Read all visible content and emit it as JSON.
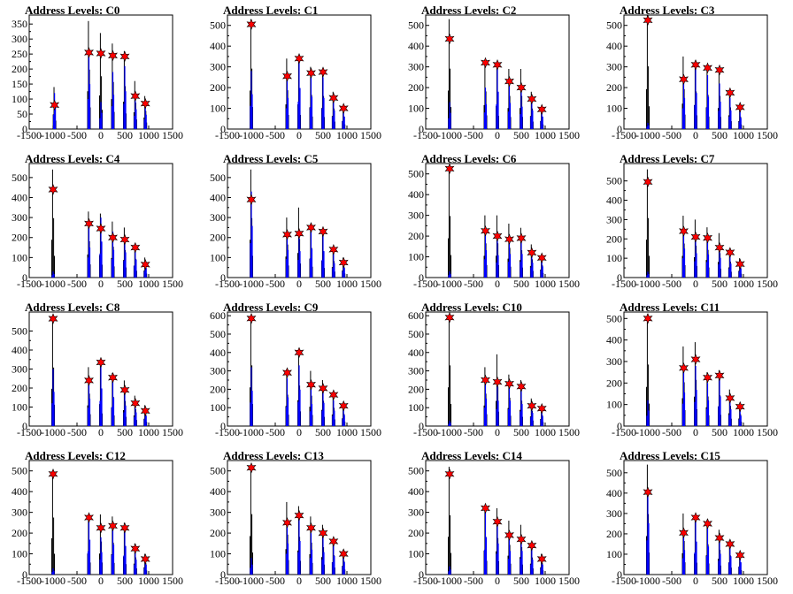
{
  "chart_data": [
    {
      "type": "histogram",
      "title": "Address Levels: C0",
      "xlim": [
        -1500,
        1500
      ],
      "ylim": [
        0,
        380
      ],
      "yticks": [
        0,
        50,
        100,
        150,
        200,
        250,
        300,
        350
      ],
      "xticks": [
        -1500,
        -1000,
        -500,
        0,
        500,
        1000,
        1500
      ],
      "peaks": [
        {
          "x": -970,
          "black": 140,
          "blue": 120,
          "star": 80
        },
        {
          "x": -250,
          "black": 360,
          "blue": 250,
          "star": 255
        },
        {
          "x": 0,
          "black": 320,
          "blue": 90,
          "star": 252
        },
        {
          "x": 250,
          "black": 285,
          "blue": 190,
          "star": 245
        },
        {
          "x": 500,
          "black": 260,
          "blue": 210,
          "star": 242
        },
        {
          "x": 720,
          "black": 160,
          "blue": 110,
          "star": 110
        },
        {
          "x": 930,
          "black": 110,
          "blue": 80,
          "star": 85
        }
      ]
    },
    {
      "type": "histogram",
      "title": "Address Levels: C1",
      "xlim": [
        -1500,
        1500
      ],
      "ylim": [
        0,
        550
      ],
      "yticks": [
        0,
        100,
        200,
        300,
        400,
        500
      ],
      "xticks": [
        -1500,
        -1000,
        -500,
        0,
        500,
        1000,
        1500
      ],
      "peaks": [
        {
          "x": -1000,
          "black": 530,
          "blue": 280,
          "star": 505
        },
        {
          "x": -250,
          "black": 340,
          "blue": 250,
          "star": 255
        },
        {
          "x": 0,
          "black": 340,
          "blue": 330,
          "star": 340
        },
        {
          "x": 250,
          "black": 300,
          "blue": 260,
          "star": 270
        },
        {
          "x": 500,
          "black": 290,
          "blue": 250,
          "star": 275
        },
        {
          "x": 720,
          "black": 180,
          "blue": 150,
          "star": 150
        },
        {
          "x": 930,
          "black": 110,
          "blue": 100,
          "star": 100
        }
      ]
    },
    {
      "type": "histogram",
      "title": "Address Levels: C2",
      "xlim": [
        -1500,
        1500
      ],
      "ylim": [
        0,
        550
      ],
      "yticks": [
        0,
        100,
        200,
        300,
        400,
        500
      ],
      "xticks": [
        -1500,
        -1000,
        -500,
        0,
        500,
        1000,
        1500
      ],
      "peaks": [
        {
          "x": -1000,
          "black": 530,
          "blue": 130,
          "star": 435
        },
        {
          "x": -250,
          "black": 330,
          "blue": 200,
          "star": 320
        },
        {
          "x": 0,
          "black": 320,
          "blue": 300,
          "star": 310
        },
        {
          "x": 250,
          "black": 290,
          "blue": 210,
          "star": 230
        },
        {
          "x": 500,
          "black": 290,
          "blue": 180,
          "star": 200
        },
        {
          "x": 720,
          "black": 180,
          "blue": 150,
          "star": 145
        },
        {
          "x": 930,
          "black": 110,
          "blue": 100,
          "star": 95
        }
      ]
    },
    {
      "type": "histogram",
      "title": "Address Levels: C3",
      "xlim": [
        -1500,
        1500
      ],
      "ylim": [
        0,
        550
      ],
      "yticks": [
        0,
        100,
        200,
        300,
        400,
        500
      ],
      "xticks": [
        -1500,
        -1000,
        -500,
        0,
        500,
        1000,
        1500
      ],
      "peaks": [
        {
          "x": -1000,
          "black": 550,
          "blue": 30,
          "star": 525
        },
        {
          "x": -250,
          "black": 350,
          "blue": 250,
          "star": 240
        },
        {
          "x": 0,
          "black": 330,
          "blue": 290,
          "star": 310
        },
        {
          "x": 250,
          "black": 300,
          "blue": 260,
          "star": 295
        },
        {
          "x": 500,
          "black": 290,
          "blue": 220,
          "star": 285
        },
        {
          "x": 720,
          "black": 190,
          "blue": 150,
          "star": 175
        },
        {
          "x": 930,
          "black": 110,
          "blue": 90,
          "star": 105
        }
      ]
    },
    {
      "type": "histogram",
      "title": "Address Levels: C4",
      "xlim": [
        -1500,
        1500
      ],
      "ylim": [
        0,
        570
      ],
      "yticks": [
        0,
        100,
        200,
        300,
        400,
        500
      ],
      "xticks": [
        -1500,
        -1000,
        -500,
        0,
        500,
        1000,
        1500
      ],
      "peaks": [
        {
          "x": -1000,
          "black": 540,
          "blue": 30,
          "star": 440
        },
        {
          "x": -250,
          "black": 330,
          "blue": 250,
          "star": 270
        },
        {
          "x": 0,
          "black": 320,
          "blue": 300,
          "star": 245
        },
        {
          "x": 250,
          "black": 280,
          "blue": 230,
          "star": 200
        },
        {
          "x": 500,
          "black": 250,
          "blue": 210,
          "star": 190
        },
        {
          "x": 720,
          "black": 170,
          "blue": 150,
          "star": 150
        },
        {
          "x": 930,
          "black": 100,
          "blue": 80,
          "star": 65
        }
      ]
    },
    {
      "type": "histogram",
      "title": "Address Levels: C5",
      "xlim": [
        -1500,
        1500
      ],
      "ylim": [
        0,
        570
      ],
      "yticks": [
        0,
        100,
        200,
        300,
        400,
        500
      ],
      "xticks": [
        -1500,
        -1000,
        -500,
        0,
        500,
        1000,
        1500
      ],
      "peaks": [
        {
          "x": -1000,
          "black": 540,
          "blue": 430,
          "star": 390
        },
        {
          "x": -250,
          "black": 300,
          "blue": 230,
          "star": 215
        },
        {
          "x": 0,
          "black": 350,
          "blue": 220,
          "star": 220
        },
        {
          "x": 250,
          "black": 270,
          "blue": 240,
          "star": 250
        },
        {
          "x": 500,
          "black": 240,
          "blue": 220,
          "star": 230
        },
        {
          "x": 720,
          "black": 150,
          "blue": 120,
          "star": 140
        },
        {
          "x": 930,
          "black": 100,
          "blue": 80,
          "star": 75
        }
      ]
    },
    {
      "type": "histogram",
      "title": "Address Levels: C6",
      "xlim": [
        -1500,
        1500
      ],
      "ylim": [
        0,
        550
      ],
      "yticks": [
        0,
        100,
        200,
        300,
        400,
        500
      ],
      "xticks": [
        -1500,
        -1000,
        -500,
        0,
        500,
        1000,
        1500
      ],
      "peaks": [
        {
          "x": -1000,
          "black": 540,
          "blue": 30,
          "star": 525
        },
        {
          "x": -250,
          "black": 300,
          "blue": 220,
          "star": 225
        },
        {
          "x": 0,
          "black": 300,
          "blue": 180,
          "star": 200
        },
        {
          "x": 250,
          "black": 260,
          "blue": 190,
          "star": 185
        },
        {
          "x": 500,
          "black": 240,
          "blue": 190,
          "star": 190
        },
        {
          "x": 720,
          "black": 160,
          "blue": 120,
          "star": 120
        },
        {
          "x": 930,
          "black": 110,
          "blue": 90,
          "star": 95
        }
      ]
    },
    {
      "type": "histogram",
      "title": "Address Levels: C7",
      "xlim": [
        -1500,
        1500
      ],
      "ylim": [
        0,
        590
      ],
      "yticks": [
        0,
        100,
        200,
        300,
        400,
        500
      ],
      "xticks": [
        -1500,
        -1000,
        -500,
        0,
        500,
        1000,
        1500
      ],
      "peaks": [
        {
          "x": -1000,
          "black": 560,
          "blue": 30,
          "star": 495
        },
        {
          "x": -250,
          "black": 320,
          "blue": 250,
          "star": 240
        },
        {
          "x": 0,
          "black": 300,
          "blue": 210,
          "star": 210
        },
        {
          "x": 250,
          "black": 260,
          "blue": 200,
          "star": 205
        },
        {
          "x": 500,
          "black": 230,
          "blue": 170,
          "star": 155
        },
        {
          "x": 720,
          "black": 150,
          "blue": 120,
          "star": 130
        },
        {
          "x": 930,
          "black": 100,
          "blue": 80,
          "star": 70
        }
      ]
    },
    {
      "type": "histogram",
      "title": "Address Levels: C8",
      "xlim": [
        -1500,
        1500
      ],
      "ylim": [
        0,
        600
      ],
      "yticks": [
        0,
        100,
        200,
        300,
        400,
        500
      ],
      "xticks": [
        -1500,
        -1000,
        -500,
        0,
        500,
        1000,
        1500
      ],
      "peaks": [
        {
          "x": -1000,
          "black": 560,
          "blue": 300,
          "star": 565
        },
        {
          "x": -250,
          "black": 310,
          "blue": 240,
          "star": 240
        },
        {
          "x": 0,
          "black": 330,
          "blue": 330,
          "star": 335
        },
        {
          "x": 250,
          "black": 280,
          "blue": 250,
          "star": 255
        },
        {
          "x": 500,
          "black": 240,
          "blue": 180,
          "star": 190
        },
        {
          "x": 720,
          "black": 160,
          "blue": 120,
          "star": 120
        },
        {
          "x": 930,
          "black": 110,
          "blue": 90,
          "star": 80
        }
      ]
    },
    {
      "type": "histogram",
      "title": "Address Levels: C9",
      "xlim": [
        -1500,
        1500
      ],
      "ylim": [
        0,
        620
      ],
      "yticks": [
        0,
        100,
        200,
        300,
        400,
        500,
        600
      ],
      "xticks": [
        -1500,
        -1000,
        -500,
        0,
        500,
        1000,
        1500
      ],
      "peaks": [
        {
          "x": -1000,
          "black": 600,
          "blue": 320,
          "star": 585
        },
        {
          "x": -250,
          "black": 310,
          "blue": 260,
          "star": 290
        },
        {
          "x": 0,
          "black": 400,
          "blue": 330,
          "star": 400
        },
        {
          "x": 250,
          "black": 300,
          "blue": 200,
          "star": 225
        },
        {
          "x": 500,
          "black": 250,
          "blue": 210,
          "star": 205
        },
        {
          "x": 720,
          "black": 180,
          "blue": 140,
          "star": 170
        },
        {
          "x": 930,
          "black": 120,
          "blue": 100,
          "star": 110
        }
      ]
    },
    {
      "type": "histogram",
      "title": "Address Levels: C10",
      "xlim": [
        -1500,
        1500
      ],
      "ylim": [
        0,
        620
      ],
      "yticks": [
        0,
        100,
        200,
        300,
        400,
        500,
        600
      ],
      "xticks": [
        -1500,
        -1000,
        -500,
        0,
        500,
        1000,
        1500
      ],
      "peaks": [
        {
          "x": -1000,
          "black": 600,
          "blue": 30,
          "star": 590
        },
        {
          "x": -250,
          "black": 320,
          "blue": 250,
          "star": 250
        },
        {
          "x": 0,
          "black": 390,
          "blue": 230,
          "star": 240
        },
        {
          "x": 250,
          "black": 280,
          "blue": 230,
          "star": 230
        },
        {
          "x": 500,
          "black": 250,
          "blue": 200,
          "star": 215
        },
        {
          "x": 720,
          "black": 150,
          "blue": 120,
          "star": 110
        },
        {
          "x": 930,
          "black": 110,
          "blue": 90,
          "star": 95
        }
      ]
    },
    {
      "type": "histogram",
      "title": "Address Levels: C11",
      "xlim": [
        -1500,
        1500
      ],
      "ylim": [
        0,
        530
      ],
      "yticks": [
        0,
        100,
        200,
        300,
        400,
        500
      ],
      "xticks": [
        -1500,
        -1000,
        -500,
        0,
        500,
        1000,
        1500
      ],
      "peaks": [
        {
          "x": -1000,
          "black": 520,
          "blue": 120,
          "star": 500
        },
        {
          "x": -250,
          "black": 370,
          "blue": 260,
          "star": 270
        },
        {
          "x": 0,
          "black": 390,
          "blue": 280,
          "star": 310
        },
        {
          "x": 250,
          "black": 250,
          "blue": 200,
          "star": 225
        },
        {
          "x": 500,
          "black": 260,
          "blue": 230,
          "star": 235
        },
        {
          "x": 720,
          "black": 170,
          "blue": 130,
          "star": 130
        },
        {
          "x": 930,
          "black": 100,
          "blue": 80,
          "star": 90
        }
      ]
    },
    {
      "type": "histogram",
      "title": "Address Levels: C12",
      "xlim": [
        -1500,
        1500
      ],
      "ylim": [
        0,
        550
      ],
      "yticks": [
        0,
        100,
        200,
        300,
        400,
        500
      ],
      "xticks": [
        -1500,
        -1000,
        -500,
        0,
        500,
        1000,
        1500
      ],
      "peaks": [
        {
          "x": -1000,
          "black": 500,
          "blue": 30,
          "star": 485
        },
        {
          "x": -250,
          "black": 290,
          "blue": 280,
          "star": 275
        },
        {
          "x": 0,
          "black": 290,
          "blue": 180,
          "star": 225
        },
        {
          "x": 250,
          "black": 280,
          "blue": 240,
          "star": 235
        },
        {
          "x": 500,
          "black": 250,
          "blue": 230,
          "star": 225
        },
        {
          "x": 720,
          "black": 150,
          "blue": 120,
          "star": 125
        },
        {
          "x": 930,
          "black": 100,
          "blue": 80,
          "star": 75
        }
      ]
    },
    {
      "type": "histogram",
      "title": "Address Levels: C13",
      "xlim": [
        -1500,
        1500
      ],
      "ylim": [
        0,
        550
      ],
      "yticks": [
        0,
        100,
        200,
        300,
        400,
        500
      ],
      "xticks": [
        -1500,
        -1000,
        -500,
        0,
        500,
        1000,
        1500
      ],
      "peaks": [
        {
          "x": -1000,
          "black": 530,
          "blue": 80,
          "star": 515
        },
        {
          "x": -250,
          "black": 350,
          "blue": 250,
          "star": 250
        },
        {
          "x": 0,
          "black": 330,
          "blue": 270,
          "star": 285
        },
        {
          "x": 250,
          "black": 280,
          "blue": 200,
          "star": 225
        },
        {
          "x": 500,
          "black": 240,
          "blue": 180,
          "star": 200
        },
        {
          "x": 720,
          "black": 170,
          "blue": 150,
          "star": 160
        },
        {
          "x": 930,
          "black": 120,
          "blue": 100,
          "star": 100
        }
      ]
    },
    {
      "type": "histogram",
      "title": "Address Levels: C14",
      "xlim": [
        -1500,
        1500
      ],
      "ylim": [
        0,
        550
      ],
      "yticks": [
        0,
        100,
        200,
        300,
        400,
        500
      ],
      "xticks": [
        -1500,
        -1000,
        -500,
        0,
        500,
        1000,
        1500
      ],
      "peaks": [
        {
          "x": -1000,
          "black": 520,
          "blue": 40,
          "star": 485
        },
        {
          "x": -250,
          "black": 330,
          "blue": 300,
          "star": 320
        },
        {
          "x": 0,
          "black": 320,
          "blue": 250,
          "star": 255
        },
        {
          "x": 250,
          "black": 260,
          "blue": 190,
          "star": 190
        },
        {
          "x": 500,
          "black": 240,
          "blue": 190,
          "star": 170
        },
        {
          "x": 720,
          "black": 150,
          "blue": 120,
          "star": 140
        },
        {
          "x": 930,
          "black": 100,
          "blue": 80,
          "star": 75
        }
      ]
    },
    {
      "type": "histogram",
      "title": "Address Levels: C15",
      "xlim": [
        -1500,
        1500
      ],
      "ylim": [
        0,
        560
      ],
      "yticks": [
        0,
        100,
        200,
        300,
        400,
        500
      ],
      "xticks": [
        -1500,
        -1000,
        -500,
        0,
        500,
        1000,
        1500
      ],
      "peaks": [
        {
          "x": -1000,
          "black": 540,
          "blue": 420,
          "star": 405
        },
        {
          "x": -250,
          "black": 300,
          "blue": 200,
          "star": 205
        },
        {
          "x": 0,
          "black": 290,
          "blue": 270,
          "star": 280
        },
        {
          "x": 250,
          "black": 270,
          "blue": 230,
          "star": 250
        },
        {
          "x": 500,
          "black": 220,
          "blue": 170,
          "star": 180
        },
        {
          "x": 720,
          "black": 170,
          "blue": 150,
          "star": 150
        },
        {
          "x": 930,
          "black": 110,
          "blue": 100,
          "star": 95
        }
      ]
    }
  ],
  "colors": {
    "histogram_black": "#000000",
    "histogram_blue": "#0000ff",
    "peak_marker": "#ff0000"
  }
}
